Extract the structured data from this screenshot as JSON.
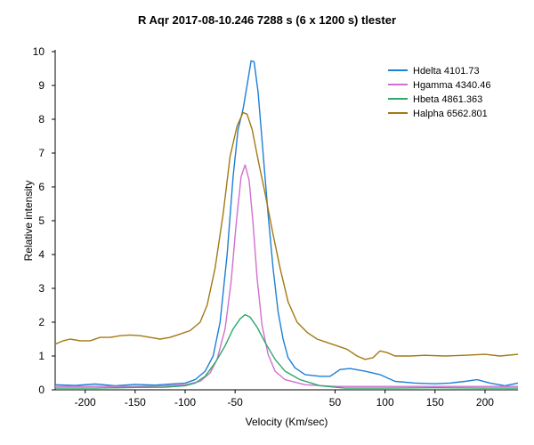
{
  "chart_data": {
    "type": "line",
    "title": "R Aqr  2017-08-10.246  7288 s (6 x 1200 s)  tlester",
    "xlabel": "Velocity (Km/sec)",
    "ylabel": "Relative intensity",
    "xlim": [
      -230,
      233
    ],
    "ylim": [
      0,
      10
    ],
    "x_ticks": [
      -200,
      -150,
      -100,
      -50,
      50,
      100,
      150,
      200
    ],
    "x_tick_labels": [
      "-200",
      "-150",
      "-100",
      "-50",
      "50",
      "100",
      "150",
      "200"
    ],
    "y_ticks": [
      0,
      1,
      2,
      3,
      4,
      5,
      6,
      7,
      8,
      9,
      10
    ],
    "y_tick_labels": [
      "0",
      "1",
      "2",
      "3",
      "4",
      "5",
      "6",
      "7",
      "8",
      "9",
      "10"
    ],
    "grid": false,
    "legend_position": "top-right",
    "series": [
      {
        "name": "Hdelta  4101.73",
        "color": "#1e7fd6",
        "points": [
          [
            -230,
            0.15
          ],
          [
            -210,
            0.13
          ],
          [
            -190,
            0.17
          ],
          [
            -170,
            0.12
          ],
          [
            -150,
            0.16
          ],
          [
            -130,
            0.14
          ],
          [
            -110,
            0.18
          ],
          [
            -100,
            0.2
          ],
          [
            -90,
            0.3
          ],
          [
            -80,
            0.55
          ],
          [
            -72,
            1.0
          ],
          [
            -65,
            2.0
          ],
          [
            -58,
            4.0
          ],
          [
            -52,
            6.3
          ],
          [
            -47,
            7.7
          ],
          [
            -42,
            8.3
          ],
          [
            -38,
            9.0
          ],
          [
            -34,
            9.73
          ],
          [
            -31,
            9.7
          ],
          [
            -27,
            8.8
          ],
          [
            -22,
            7.0
          ],
          [
            -17,
            5.2
          ],
          [
            -12,
            3.6
          ],
          [
            -7,
            2.3
          ],
          [
            -2,
            1.5
          ],
          [
            3,
            0.95
          ],
          [
            10,
            0.65
          ],
          [
            20,
            0.45
          ],
          [
            35,
            0.4
          ],
          [
            45,
            0.4
          ],
          [
            55,
            0.6
          ],
          [
            65,
            0.63
          ],
          [
            80,
            0.55
          ],
          [
            95,
            0.45
          ],
          [
            110,
            0.25
          ],
          [
            130,
            0.2
          ],
          [
            150,
            0.18
          ],
          [
            165,
            0.2
          ],
          [
            180,
            0.25
          ],
          [
            192,
            0.3
          ],
          [
            205,
            0.2
          ],
          [
            220,
            0.12
          ],
          [
            233,
            0.2
          ]
        ]
      },
      {
        "name": "Hgamma  4340.46",
        "color": "#d070d0",
        "points": [
          [
            -230,
            0.1
          ],
          [
            -190,
            0.1
          ],
          [
            -150,
            0.1
          ],
          [
            -120,
            0.12
          ],
          [
            -100,
            0.15
          ],
          [
            -85,
            0.25
          ],
          [
            -75,
            0.5
          ],
          [
            -68,
            0.9
          ],
          [
            -60,
            1.8
          ],
          [
            -54,
            3.2
          ],
          [
            -49,
            4.9
          ],
          [
            -44,
            6.3
          ],
          [
            -40,
            6.65
          ],
          [
            -36,
            6.2
          ],
          [
            -32,
            4.9
          ],
          [
            -28,
            3.3
          ],
          [
            -23,
            1.9
          ],
          [
            -17,
            1.05
          ],
          [
            -10,
            0.55
          ],
          [
            0,
            0.3
          ],
          [
            20,
            0.15
          ],
          [
            50,
            0.1
          ],
          [
            80,
            0.1
          ],
          [
            120,
            0.1
          ],
          [
            180,
            0.1
          ],
          [
            233,
            0.1
          ]
        ]
      },
      {
        "name": "Hbeta  4861.363",
        "color": "#2ea86b",
        "points": [
          [
            -230,
            0.05
          ],
          [
            -190,
            0.05
          ],
          [
            -150,
            0.07
          ],
          [
            -120,
            0.08
          ],
          [
            -100,
            0.12
          ],
          [
            -90,
            0.2
          ],
          [
            -80,
            0.4
          ],
          [
            -70,
            0.8
          ],
          [
            -60,
            1.3
          ],
          [
            -52,
            1.8
          ],
          [
            -45,
            2.1
          ],
          [
            -40,
            2.22
          ],
          [
            -35,
            2.15
          ],
          [
            -28,
            1.85
          ],
          [
            -20,
            1.4
          ],
          [
            -10,
            0.9
          ],
          [
            0,
            0.55
          ],
          [
            15,
            0.3
          ],
          [
            35,
            0.12
          ],
          [
            60,
            0.05
          ],
          [
            100,
            0.05
          ],
          [
            150,
            0.06
          ],
          [
            200,
            0.05
          ],
          [
            233,
            0.05
          ]
        ]
      },
      {
        "name": "Halpha  6562.801",
        "color": "#a27a12",
        "points": [
          [
            -230,
            1.35
          ],
          [
            -222,
            1.45
          ],
          [
            -215,
            1.5
          ],
          [
            -205,
            1.45
          ],
          [
            -195,
            1.45
          ],
          [
            -185,
            1.55
          ],
          [
            -175,
            1.55
          ],
          [
            -165,
            1.6
          ],
          [
            -155,
            1.62
          ],
          [
            -145,
            1.6
          ],
          [
            -135,
            1.55
          ],
          [
            -125,
            1.5
          ],
          [
            -115,
            1.55
          ],
          [
            -105,
            1.65
          ],
          [
            -95,
            1.75
          ],
          [
            -85,
            2.0
          ],
          [
            -78,
            2.5
          ],
          [
            -70,
            3.6
          ],
          [
            -62,
            5.2
          ],
          [
            -55,
            6.9
          ],
          [
            -48,
            7.8
          ],
          [
            -42,
            8.2
          ],
          [
            -38,
            8.15
          ],
          [
            -33,
            7.7
          ],
          [
            -27,
            6.8
          ],
          [
            -20,
            5.8
          ],
          [
            -12,
            4.6
          ],
          [
            -5,
            3.6
          ],
          [
            3,
            2.6
          ],
          [
            12,
            2.0
          ],
          [
            22,
            1.7
          ],
          [
            32,
            1.5
          ],
          [
            42,
            1.4
          ],
          [
            52,
            1.3
          ],
          [
            62,
            1.2
          ],
          [
            72,
            1.0
          ],
          [
            80,
            0.9
          ],
          [
            88,
            0.95
          ],
          [
            95,
            1.15
          ],
          [
            102,
            1.1
          ],
          [
            110,
            1.0
          ],
          [
            125,
            1.0
          ],
          [
            140,
            1.02
          ],
          [
            160,
            1.0
          ],
          [
            180,
            1.02
          ],
          [
            200,
            1.05
          ],
          [
            215,
            1.0
          ],
          [
            233,
            1.05
          ]
        ]
      }
    ]
  }
}
